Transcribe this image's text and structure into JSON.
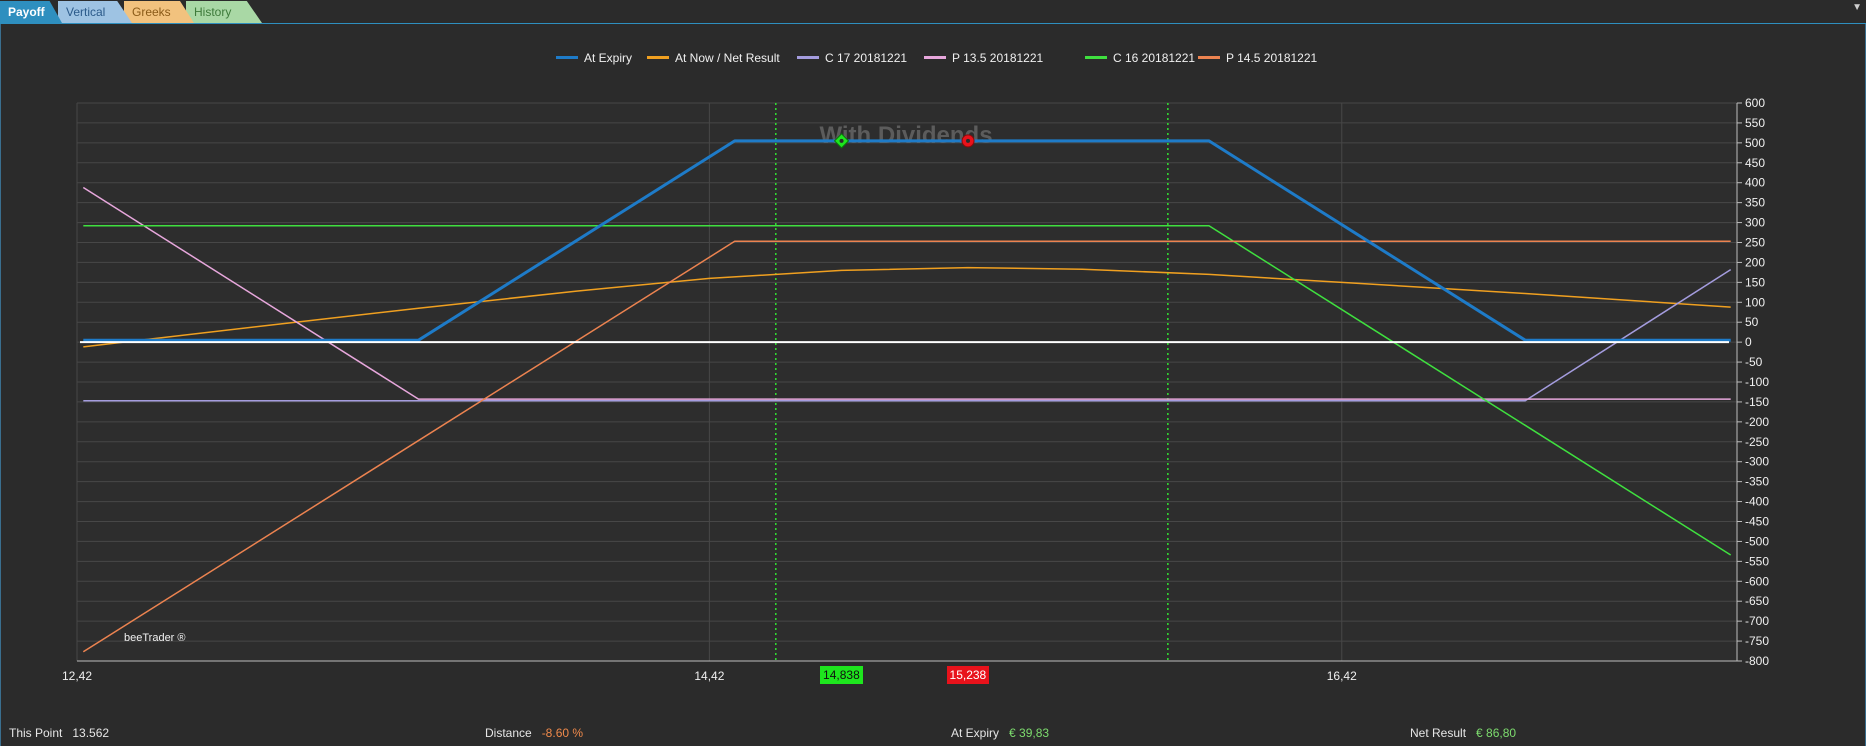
{
  "tabs": [
    {
      "label": "Payoff",
      "active": true
    },
    {
      "label": "Vertical"
    },
    {
      "label": "Greeks"
    },
    {
      "label": "History"
    }
  ],
  "watermark": "With Dividends",
  "brand": "beeTrader ®",
  "chart_data": {
    "type": "line",
    "title": "",
    "xlabel": "",
    "ylabel": "",
    "xlim": [
      12.42,
      17.67
    ],
    "ylim": [
      -800,
      600
    ],
    "x_ticks": [
      12.42,
      14.42,
      16.42
    ],
    "x_tick_labels": [
      "12,42",
      "14,42",
      "16,42"
    ],
    "y_ticks": [
      600,
      550,
      500,
      450,
      400,
      350,
      300,
      250,
      200,
      150,
      100,
      50,
      0,
      -50,
      -100,
      -150,
      -200,
      -250,
      -300,
      -350,
      -400,
      -450,
      -500,
      -550,
      -600,
      -650,
      -700,
      -750,
      -800
    ],
    "y_axis_position": "right",
    "grid": true,
    "legend_position": "top-center",
    "series": [
      {
        "name": "At Expiry",
        "color": "#1e7bc8",
        "width": 3,
        "x": [
          12.44,
          13.5,
          14.5,
          16.0,
          17.0,
          17.65
        ],
        "y": [
          5,
          5,
          505,
          505,
          5,
          5
        ]
      },
      {
        "name": "At Now / Net Result",
        "color": "#f0a020",
        "width": 1.5,
        "x": [
          12.44,
          13.0,
          13.5,
          14.0,
          14.42,
          14.838,
          15.238,
          15.6,
          16.0,
          16.42,
          17.0,
          17.65
        ],
        "y": [
          -12,
          40,
          85,
          128,
          160,
          180,
          187,
          183,
          170,
          150,
          122,
          88
        ]
      },
      {
        "name": "C 17 20181221",
        "color": "#a49cde",
        "width": 1.5,
        "x": [
          12.44,
          17.0,
          17.65
        ],
        "y": [
          -147,
          -147,
          182
        ]
      },
      {
        "name": "P 13.5 20181221",
        "color": "#e7a7dc",
        "width": 1.5,
        "x": [
          12.44,
          13.5,
          17.65
        ],
        "y": [
          388,
          -143,
          -143
        ]
      },
      {
        "name": "C 16 20181221",
        "color": "#3fe03f",
        "width": 1.5,
        "x": [
          12.44,
          16.0,
          17.65
        ],
        "y": [
          292,
          292,
          -534
        ]
      },
      {
        "name": "P 14.5 20181221",
        "color": "#ec8350",
        "width": 1.5,
        "x": [
          12.44,
          14.5,
          17.65
        ],
        "y": [
          -777,
          253,
          253
        ]
      }
    ],
    "vertical_markers": [
      14.63,
      15.87
    ],
    "reference_line_y": 0,
    "points": [
      {
        "x": 14.838,
        "y": 505,
        "label": "14,838",
        "color": "#1ee61e",
        "shape": "diamond"
      },
      {
        "x": 15.238,
        "y": 505,
        "label": "15,238",
        "color": "#e8121b",
        "shape": "circle"
      }
    ]
  },
  "status": {
    "this_point": {
      "label": "This Point",
      "value": "13.562"
    },
    "distance": {
      "label": "Distance",
      "value": "-8.60 %"
    },
    "at_expiry": {
      "label": "At Expiry",
      "value": "€ 39,83"
    },
    "net_result": {
      "label": "Net Result",
      "value": "€ 86,80"
    }
  }
}
